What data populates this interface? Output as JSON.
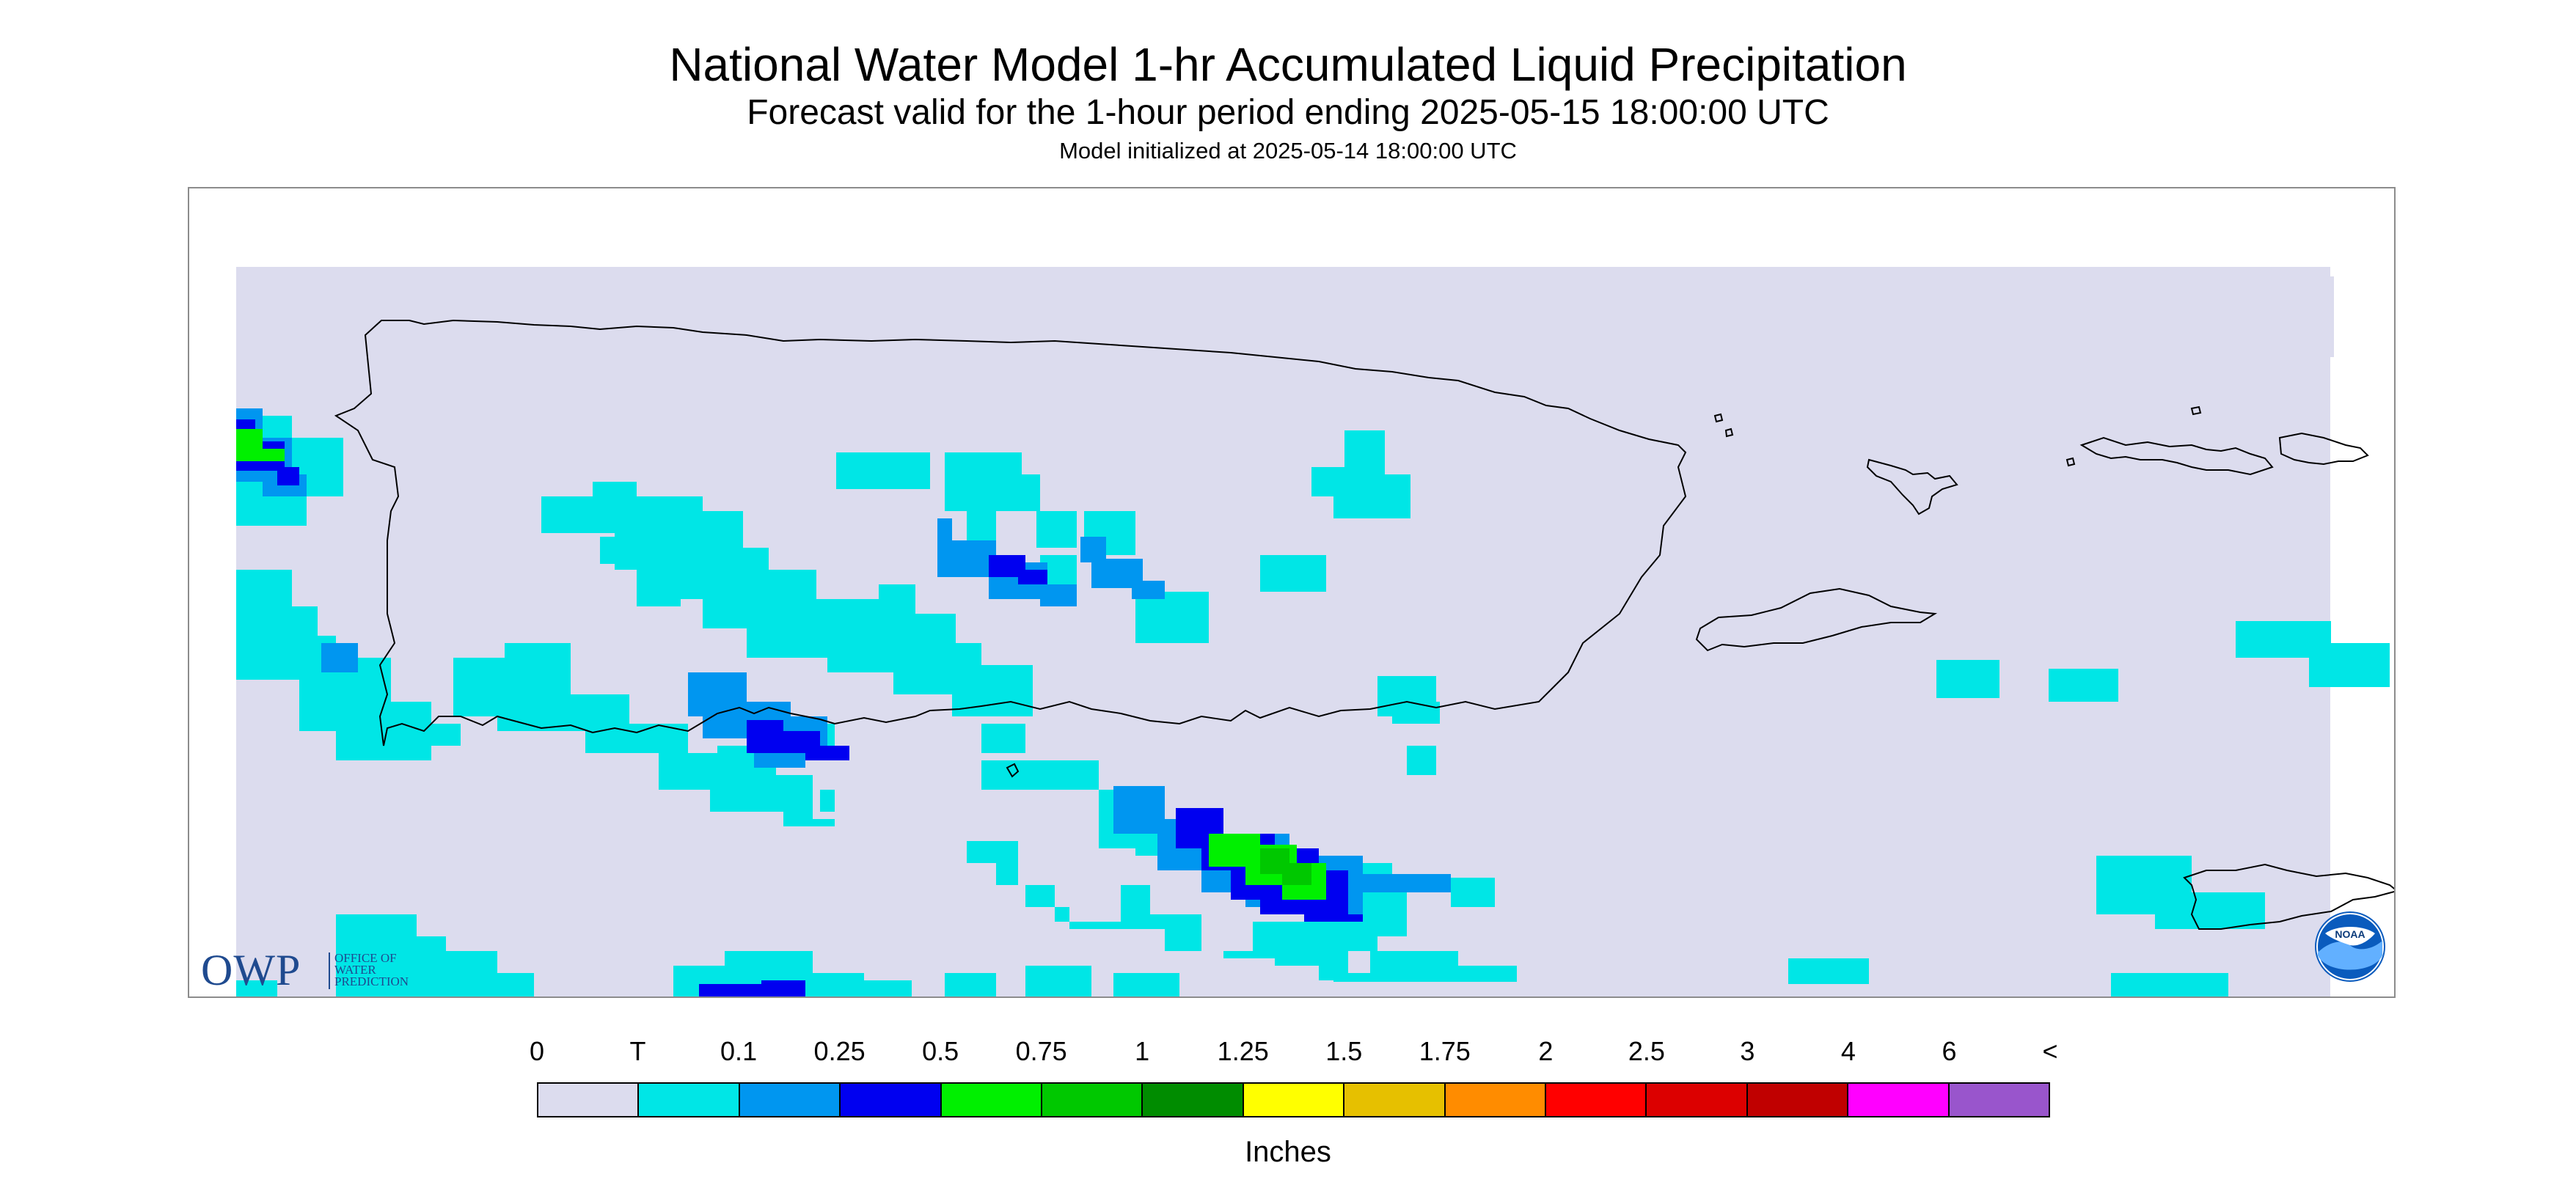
{
  "header": {
    "title": "National Water Model 1-hr Accumulated Liquid Precipitation",
    "subtitle": "Forecast valid for the 1-hour period ending 2025-05-15 18:00:00 UTC",
    "init": "Model initialized at 2025-05-14 18:00:00 UTC"
  },
  "map": {
    "background_color": "#dcdcee",
    "coastline_color": "#000000"
  },
  "logos": {
    "owp": {
      "letters": "OWP",
      "line1": "OFFICE OF",
      "line2": "WATER",
      "line3": "PREDICTION",
      "color": "#1f4a8f"
    },
    "noaa": {
      "text": "NOAA",
      "color": "#0a5bbd"
    }
  },
  "legend": {
    "labels": [
      "0",
      "T",
      "0.1",
      "0.25",
      "0.5",
      "0.75",
      "1",
      "1.25",
      "1.5",
      "1.75",
      "2",
      "2.5",
      "3",
      "4",
      "6",
      "<"
    ],
    "colors": [
      "#dcdcee",
      "#00e6e6",
      "#0096f0",
      "#0000f0",
      "#00f000",
      "#00c800",
      "#008c00",
      "#ffff00",
      "#e6c000",
      "#ff8c00",
      "#ff0000",
      "#dc0000",
      "#c00000",
      "#ff00ff",
      "#9955cc"
    ],
    "units": "Inches"
  }
}
